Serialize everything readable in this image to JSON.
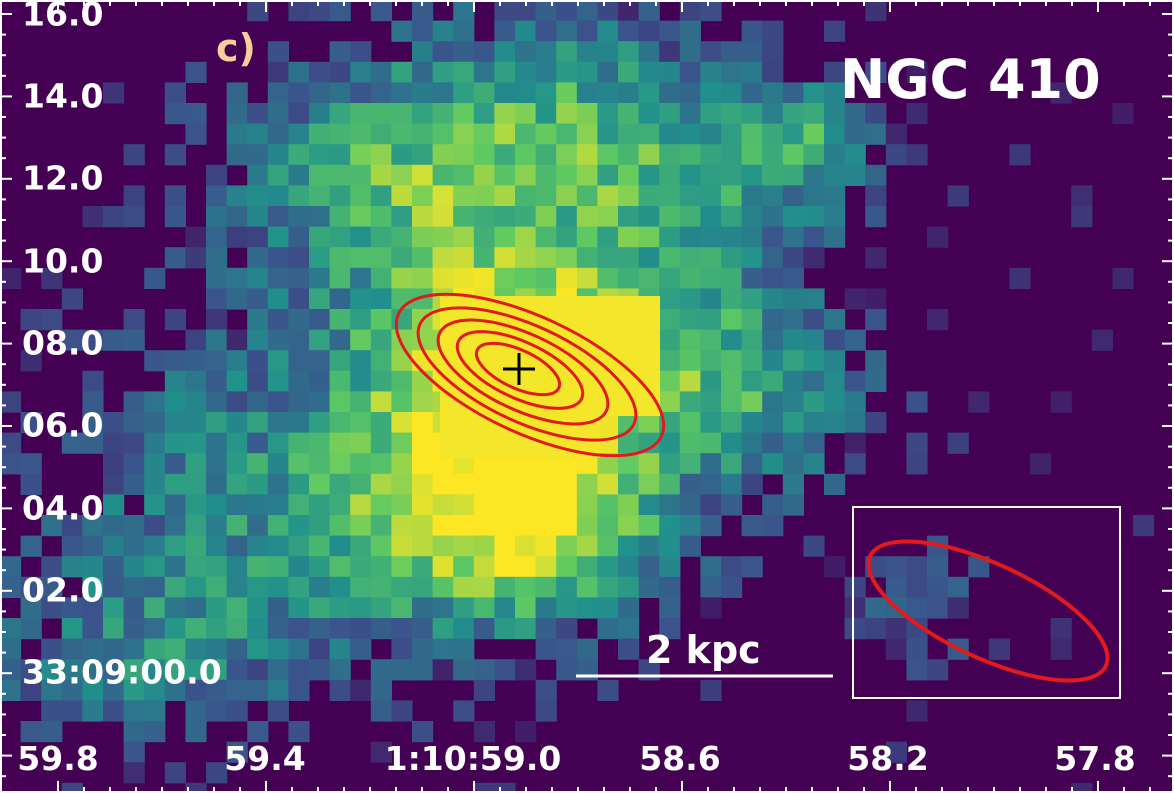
{
  "panel_label": "c)",
  "object_name": "NGC 410",
  "scale_bar": {
    "label": "2 kpc"
  },
  "axes": {
    "dec_tick_labels": [
      "16.0",
      "14.0",
      "12.0",
      "10.0",
      "08.0",
      "06.0",
      "04.0",
      "02.0",
      "33:09:00.0"
    ],
    "ra_tick_labels": [
      "59.8",
      "59.4",
      "1:10:59.0",
      "58.6",
      "58.2",
      "57.8"
    ]
  },
  "markers": {
    "center": "plus-marker",
    "contour_color": "#e31a1c",
    "beam_box_color": "#ffffff"
  },
  "colormap": [
    "#440154",
    "#3b528b",
    "#21918c",
    "#5ec962",
    "#fde725"
  ]
}
